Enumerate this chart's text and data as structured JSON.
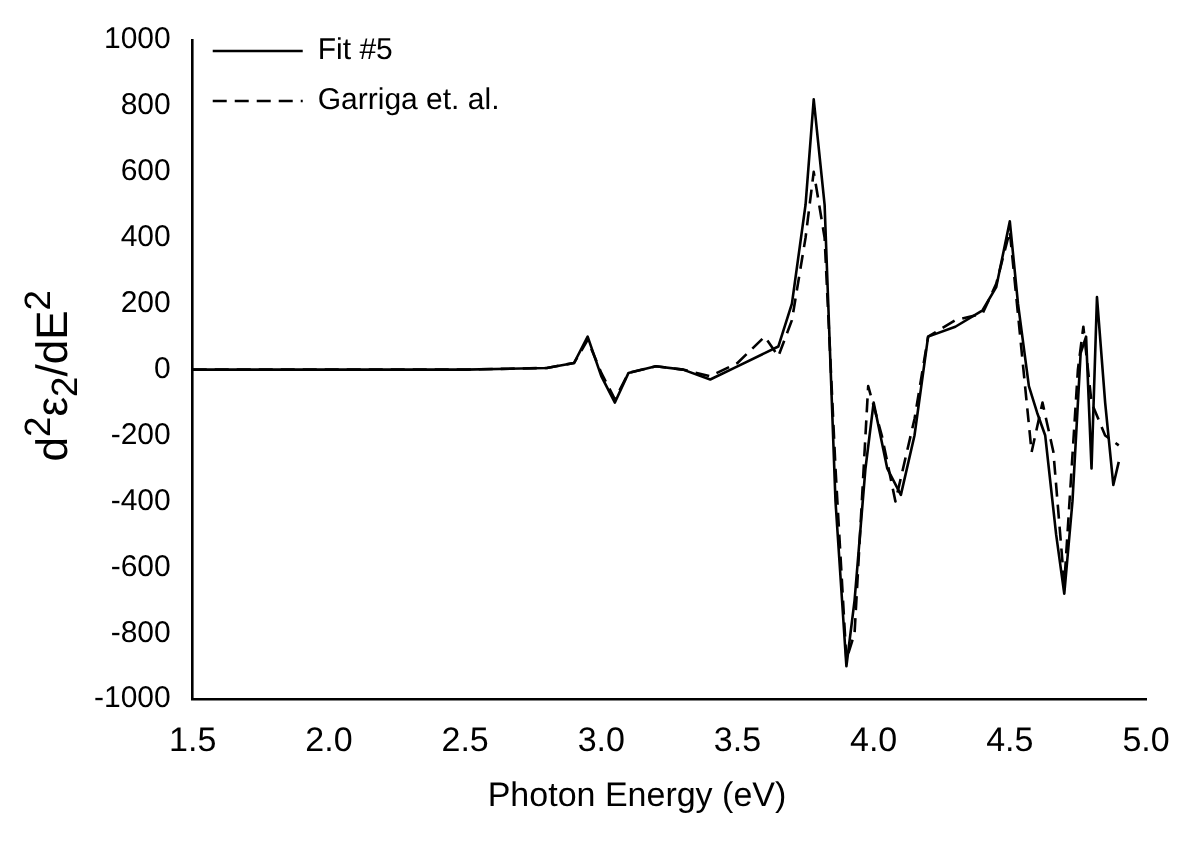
{
  "chart_data": {
    "type": "line",
    "xlabel": "Photon Energy (eV)",
    "ylabel": "d$^{2}$ε$_{2}$/dE$^{2}$",
    "xlim": [
      1.5,
      5.0
    ],
    "xticks": [
      {
        "value": 1.5,
        "label": "1.5"
      },
      {
        "value": 2.0,
        "label": "2.0"
      },
      {
        "value": 2.5,
        "label": "2.5"
      },
      {
        "value": 3.0,
        "label": "3.0"
      },
      {
        "value": 3.5,
        "label": "3.5"
      },
      {
        "value": 4.0,
        "label": "4.0"
      },
      {
        "value": 4.5,
        "label": "4.5"
      },
      {
        "value": 5.0,
        "label": "5.0"
      }
    ],
    "ylim": [
      -1000,
      1000
    ],
    "yticks": [
      -1000,
      -800,
      -600,
      -400,
      -200,
      0,
      200,
      400,
      600,
      800,
      1000
    ],
    "legend": "top left",
    "grid": false,
    "series": [
      {
        "name": "Fit #5",
        "color": "#000000",
        "line_style": "solid",
        "x": [
          1.5,
          2.5,
          2.8,
          2.9,
          2.95,
          3.0,
          3.05,
          3.1,
          3.2,
          3.3,
          3.4,
          3.5,
          3.6,
          3.65,
          3.7,
          3.75,
          3.78,
          3.82,
          3.86,
          3.9,
          3.93,
          3.97,
          4.0,
          4.05,
          4.1,
          4.15,
          4.2,
          4.3,
          4.4,
          4.45,
          4.5,
          4.53,
          4.57,
          4.6,
          4.63,
          4.67,
          4.7,
          4.73,
          4.76,
          4.78,
          4.8,
          4.82,
          4.85,
          4.88,
          4.9
        ],
        "values": [
          0,
          0,
          5,
          20,
          100,
          -20,
          -100,
          -10,
          10,
          0,
          -30,
          10,
          50,
          70,
          200,
          500,
          820,
          500,
          -400,
          -900,
          -700,
          -300,
          -100,
          -300,
          -380,
          -200,
          100,
          130,
          180,
          250,
          450,
          200,
          -50,
          -130,
          -200,
          -500,
          -680,
          -400,
          50,
          100,
          -300,
          220,
          -100,
          -350,
          -280
        ]
      },
      {
        "name": "Garriga et. al.",
        "color": "#000000",
        "line_style": "dashed",
        "x": [
          1.5,
          2.5,
          2.8,
          2.9,
          2.95,
          3.0,
          3.05,
          3.1,
          3.2,
          3.3,
          3.4,
          3.5,
          3.6,
          3.65,
          3.7,
          3.75,
          3.78,
          3.82,
          3.86,
          3.9,
          3.93,
          3.98,
          4.03,
          4.08,
          4.15,
          4.2,
          4.3,
          4.4,
          4.45,
          4.5,
          4.55,
          4.58,
          4.62,
          4.66,
          4.7,
          4.75,
          4.77,
          4.8,
          4.85,
          4.9
        ],
        "values": [
          0,
          0,
          5,
          20,
          90,
          -10,
          -90,
          -10,
          10,
          0,
          -20,
          20,
          100,
          40,
          150,
          400,
          600,
          400,
          -300,
          -880,
          -800,
          -50,
          -200,
          -400,
          -150,
          100,
          150,
          170,
          260,
          420,
          0,
          -250,
          -100,
          -250,
          -650,
          0,
          130,
          -100,
          -200,
          -230
        ]
      }
    ]
  }
}
